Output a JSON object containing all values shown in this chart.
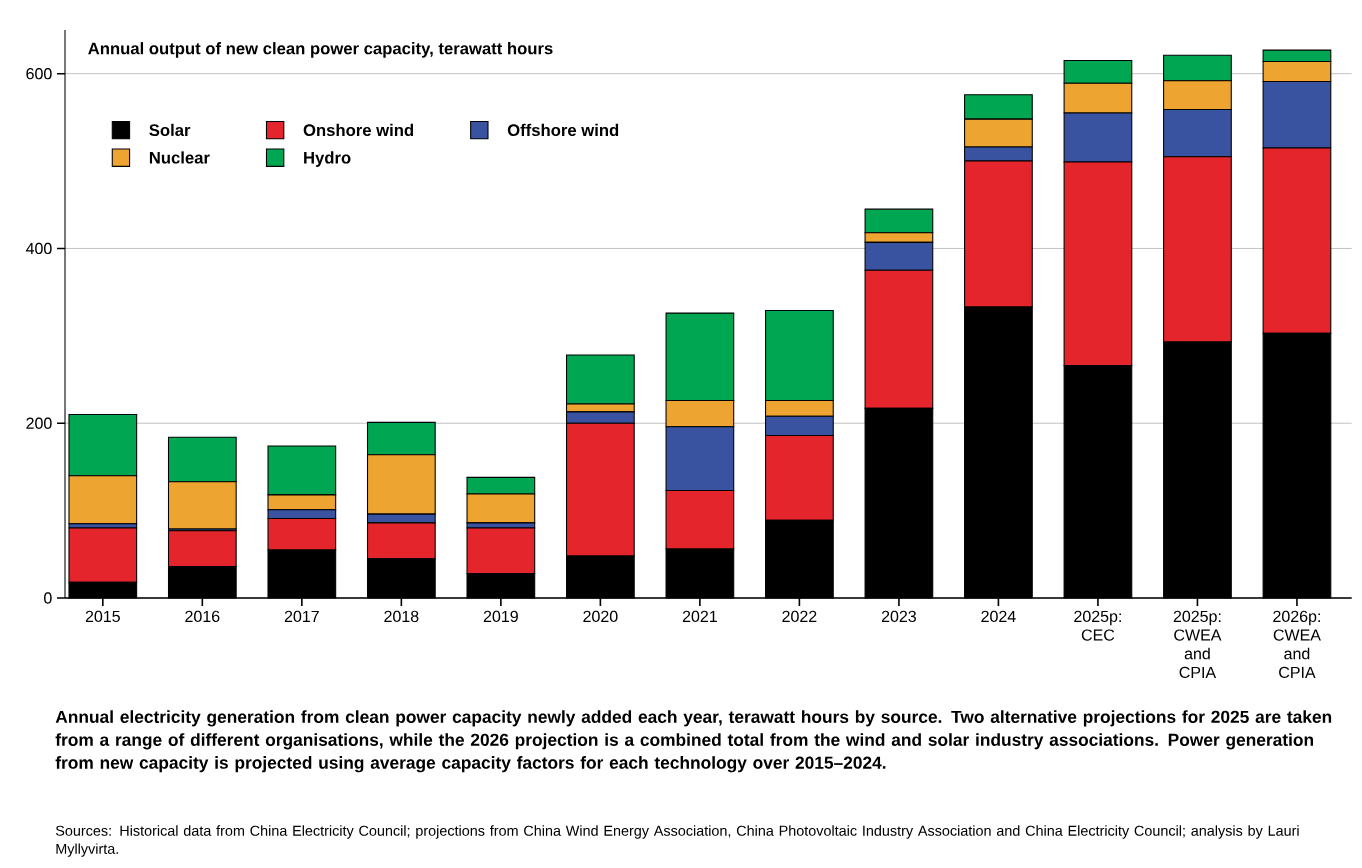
{
  "chart_data": {
    "type": "bar",
    "stacked": true,
    "title": "Annual output of new clean power capacity, terawatt hours",
    "categories": [
      "2015",
      "2016",
      "2017",
      "2018",
      "2019",
      "2020",
      "2021",
      "2022",
      "2023",
      "2024",
      "2025p: CEC",
      "2025p: CWEA and CPIA",
      "2026p: CWEA and CPIA"
    ],
    "series": [
      {
        "name": "Solar",
        "color": "#000000",
        "values": [
          18,
          36,
          55,
          45,
          28,
          48,
          56,
          89,
          217,
          333,
          266,
          293,
          303
        ]
      },
      {
        "name": "Onshore wind",
        "color": "#e4252b",
        "values": [
          62,
          41,
          36,
          41,
          52,
          152,
          67,
          97,
          158,
          167,
          233,
          212,
          212
        ]
      },
      {
        "name": "Offshore wind",
        "color": "#3a53a0",
        "values": [
          5,
          2,
          10,
          10,
          6,
          13,
          73,
          22,
          32,
          16,
          56,
          54,
          76
        ]
      },
      {
        "name": "Nuclear",
        "color": "#eea431",
        "values": [
          55,
          54,
          17,
          68,
          33,
          9,
          30,
          18,
          11,
          32,
          34,
          33,
          23
        ]
      },
      {
        "name": "Hydro",
        "color": "#00a651",
        "values": [
          70,
          51,
          56,
          37,
          19,
          56,
          100,
          103,
          27,
          28,
          26,
          29,
          13
        ]
      }
    ],
    "ylim": [
      0,
      650
    ],
    "yticks": [
      0,
      200,
      400,
      600
    ],
    "grid": "y",
    "legend": "top left",
    "annotations": [
      "Annual electricity generation from clean power capacity newly added each year, terawatt hours by source. Two alternative projections for 2025 are taken from a range of different organisations, while the 2026 projection is a combined total from the wind and solar industry associations. Power generation from new capacity is projected using average capacity factors for each technology over 2015–2024.",
      "Sources: Historical data from China Electricity Council; projections from China Wind Energy Association, China Photovoltaic Industry Association and China Electricity Council; analysis by Lauri Myllyvirta."
    ]
  }
}
